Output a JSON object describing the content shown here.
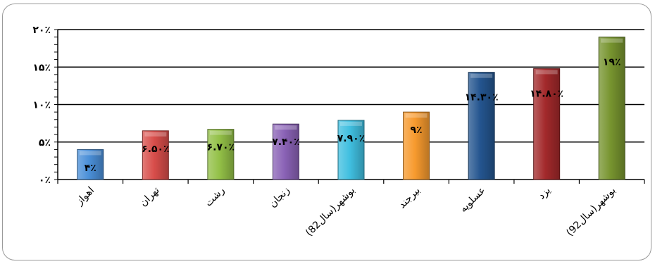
{
  "chart_data": {
    "type": "bar",
    "categories": [
      "اهواز",
      "تهران",
      "رشت",
      "زنجان",
      "بوشهر(سال82)",
      "بیرجند",
      "عسلویه",
      "یزد",
      "بوشهر(سال92)"
    ],
    "values": [
      4,
      6.5,
      6.7,
      7.4,
      7.9,
      9,
      14.3,
      14.8,
      19
    ],
    "data_labels": [
      "۴٪",
      "۶.۵۰٪",
      "۶.۷۰٪",
      "۷.۴۰٪",
      "۷.۹۰٪",
      "۹٪",
      "۱۴.۳۰٪",
      "۱۴.۸۰٪",
      "۱۹٪"
    ],
    "colors": [
      "#4a8fd8",
      "#d84d4a",
      "#93c047",
      "#8a62b6",
      "#40bfe0",
      "#f79a2e",
      "#24558f",
      "#a3292b",
      "#77942f"
    ],
    "y_ticks": [
      0,
      5,
      10,
      15,
      20
    ],
    "y_tick_labels": [
      "۰٪",
      "۵٪",
      "۱۰٪",
      "۱۵٪",
      "۲۰٪"
    ],
    "ylim": [
      0,
      20
    ],
    "grid": true,
    "title": "",
    "xlabel": "",
    "ylabel": ""
  }
}
